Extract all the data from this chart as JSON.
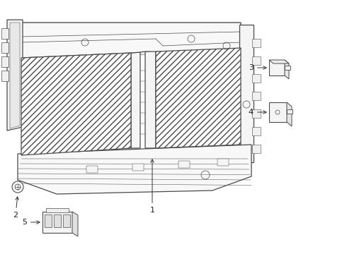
{
  "bg_color": "#ffffff",
  "line_color": "#4a4a4a",
  "fig_width": 4.9,
  "fig_height": 3.6,
  "dpi": 100,
  "font_size": 8,
  "font_color": "#222222",
  "arrow_color": "#333333",
  "hatch_density": "////",
  "lw_main": 0.9,
  "lw_thin": 0.5,
  "lw_thick": 1.2
}
